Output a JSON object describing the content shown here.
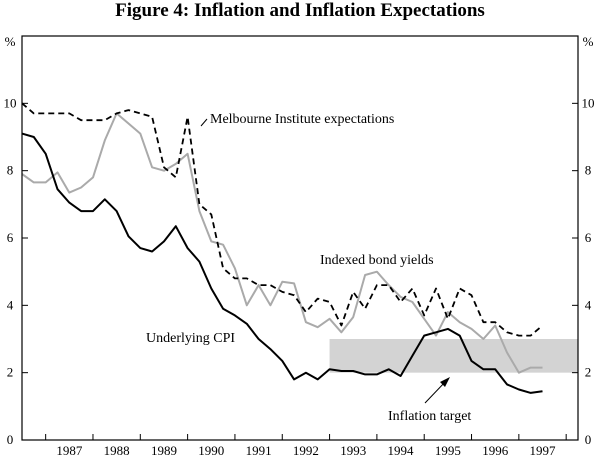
{
  "chart_data": {
    "type": "line",
    "title": "Figure 4: Inflation and Inflation Expectations",
    "ylabel_left": "%",
    "ylabel_right": "%",
    "ylim": [
      0,
      12
    ],
    "yticks": [
      0,
      2,
      4,
      6,
      8,
      10
    ],
    "xlim": [
      1986.5,
      1998.25
    ],
    "year_ticks": [
      1987,
      1988,
      1989,
      1990,
      1991,
      1992,
      1993,
      1994,
      1995,
      1996,
      1997
    ],
    "series": [
      {
        "name": "Melbourne Institute expectations",
        "style": "dashed",
        "color": "#000000",
        "points": [
          [
            1986.5,
            10.0
          ],
          [
            1986.75,
            9.7
          ],
          [
            1987.0,
            9.7
          ],
          [
            1987.25,
            9.7
          ],
          [
            1987.5,
            9.7
          ],
          [
            1987.75,
            9.5
          ],
          [
            1988.0,
            9.5
          ],
          [
            1988.25,
            9.5
          ],
          [
            1988.5,
            9.7
          ],
          [
            1988.75,
            9.8
          ],
          [
            1989.0,
            9.7
          ],
          [
            1989.25,
            9.6
          ],
          [
            1989.5,
            8.1
          ],
          [
            1989.75,
            7.8
          ],
          [
            1990.0,
            9.6
          ],
          [
            1990.25,
            7.0
          ],
          [
            1990.5,
            6.7
          ],
          [
            1990.75,
            5.1
          ],
          [
            1991.0,
            4.8
          ],
          [
            1991.25,
            4.8
          ],
          [
            1991.5,
            4.6
          ],
          [
            1991.75,
            4.6
          ],
          [
            1992.0,
            4.4
          ],
          [
            1992.25,
            4.3
          ],
          [
            1992.5,
            3.8
          ],
          [
            1992.75,
            4.2
          ],
          [
            1993.0,
            4.1
          ],
          [
            1993.25,
            3.4
          ],
          [
            1993.5,
            4.4
          ],
          [
            1993.75,
            3.9
          ],
          [
            1994.0,
            4.6
          ],
          [
            1994.25,
            4.6
          ],
          [
            1994.5,
            4.1
          ],
          [
            1994.75,
            4.5
          ],
          [
            1995.0,
            3.7
          ],
          [
            1995.25,
            4.5
          ],
          [
            1995.5,
            3.6
          ],
          [
            1995.75,
            4.5
          ],
          [
            1996.0,
            4.3
          ],
          [
            1996.25,
            3.5
          ],
          [
            1996.5,
            3.5
          ],
          [
            1996.75,
            3.2
          ],
          [
            1997.0,
            3.1
          ],
          [
            1997.25,
            3.1
          ],
          [
            1997.5,
            3.4
          ]
        ]
      },
      {
        "name": "Indexed bond yields",
        "style": "solid",
        "color": "#aaaaaa",
        "points": [
          [
            1986.5,
            7.9
          ],
          [
            1986.75,
            7.65
          ],
          [
            1987.0,
            7.65
          ],
          [
            1987.25,
            7.95
          ],
          [
            1987.5,
            7.35
          ],
          [
            1987.75,
            7.5
          ],
          [
            1988.0,
            7.8
          ],
          [
            1988.25,
            8.9
          ],
          [
            1988.5,
            9.7
          ],
          [
            1988.75,
            9.4
          ],
          [
            1989.0,
            9.1
          ],
          [
            1989.25,
            8.1
          ],
          [
            1989.5,
            8.0
          ],
          [
            1989.75,
            8.2
          ],
          [
            1990.0,
            8.5
          ],
          [
            1990.25,
            6.8
          ],
          [
            1990.5,
            5.9
          ],
          [
            1990.75,
            5.8
          ],
          [
            1991.0,
            5.1
          ],
          [
            1991.25,
            4.0
          ],
          [
            1991.5,
            4.6
          ],
          [
            1991.75,
            4.0
          ],
          [
            1992.0,
            4.7
          ],
          [
            1992.25,
            4.65
          ],
          [
            1992.5,
            3.5
          ],
          [
            1992.75,
            3.35
          ],
          [
            1993.0,
            3.6
          ],
          [
            1993.25,
            3.2
          ],
          [
            1993.5,
            3.65
          ],
          [
            1993.75,
            4.9
          ],
          [
            1994.0,
            5.0
          ],
          [
            1994.25,
            4.6
          ],
          [
            1994.5,
            4.25
          ],
          [
            1994.75,
            4.1
          ],
          [
            1995.0,
            3.6
          ],
          [
            1995.25,
            3.1
          ],
          [
            1995.5,
            3.8
          ],
          [
            1995.75,
            3.5
          ],
          [
            1996.0,
            3.3
          ],
          [
            1996.25,
            3.0
          ],
          [
            1996.5,
            3.4
          ],
          [
            1996.75,
            2.6
          ],
          [
            1997.0,
            2.0
          ],
          [
            1997.25,
            2.15
          ],
          [
            1997.5,
            2.15
          ]
        ]
      },
      {
        "name": "Underlying CPI",
        "style": "solid",
        "color": "#000000",
        "points": [
          [
            1986.5,
            9.1
          ],
          [
            1986.75,
            9.0
          ],
          [
            1987.0,
            8.5
          ],
          [
            1987.25,
            7.45
          ],
          [
            1987.5,
            7.05
          ],
          [
            1987.75,
            6.8
          ],
          [
            1988.0,
            6.8
          ],
          [
            1988.25,
            7.15
          ],
          [
            1988.5,
            6.8
          ],
          [
            1988.75,
            6.05
          ],
          [
            1989.0,
            5.7
          ],
          [
            1989.25,
            5.6
          ],
          [
            1989.5,
            5.9
          ],
          [
            1989.75,
            6.35
          ],
          [
            1990.0,
            5.7
          ],
          [
            1990.25,
            5.3
          ],
          [
            1990.5,
            4.5
          ],
          [
            1990.75,
            3.9
          ],
          [
            1991.0,
            3.7
          ],
          [
            1991.25,
            3.45
          ],
          [
            1991.5,
            3.0
          ],
          [
            1991.75,
            2.7
          ],
          [
            1992.0,
            2.35
          ],
          [
            1992.25,
            1.8
          ],
          [
            1992.5,
            2.0
          ],
          [
            1992.75,
            1.8
          ],
          [
            1993.0,
            2.1
          ],
          [
            1993.25,
            2.05
          ],
          [
            1993.5,
            2.05
          ],
          [
            1993.75,
            1.95
          ],
          [
            1994.0,
            1.95
          ],
          [
            1994.25,
            2.1
          ],
          [
            1994.5,
            1.9
          ],
          [
            1994.75,
            2.5
          ],
          [
            1995.0,
            3.1
          ],
          [
            1995.25,
            3.2
          ],
          [
            1995.5,
            3.3
          ],
          [
            1995.75,
            3.1
          ],
          [
            1996.0,
            2.35
          ],
          [
            1996.25,
            2.1
          ],
          [
            1996.5,
            2.1
          ],
          [
            1996.75,
            1.65
          ],
          [
            1997.0,
            1.5
          ],
          [
            1997.25,
            1.4
          ],
          [
            1997.5,
            1.45
          ]
        ]
      }
    ],
    "target_band": {
      "name": "Inflation target",
      "x_start": 1993.0,
      "x_end": 1998.25,
      "y_low": 2,
      "y_high": 3
    },
    "annotations": {
      "melbourne": "Melbourne Institute expectations",
      "indexed": "Indexed bond yields",
      "cpi": "Underlying CPI",
      "target": "Inflation target"
    }
  }
}
